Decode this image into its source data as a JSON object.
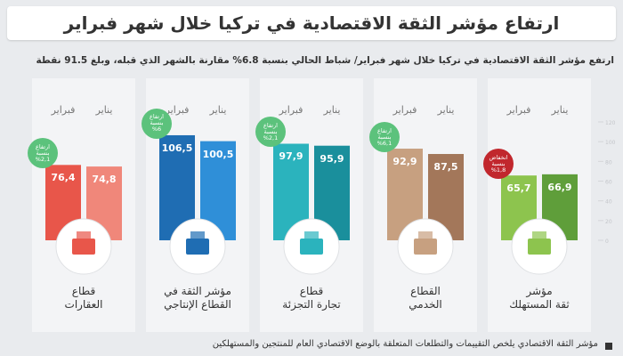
{
  "chart_data": {
    "type": "bar",
    "title": "ارتفاع مؤشر الثقة الاقتصادية في تركيا خلال شهر فبراير",
    "subtitle": "ارتفع مؤشر الثقة الاقتصادية في تركيا خلال شهر فبراير/ شباط الحالي بنسبة 6.8% مقارنة بالشهر الذي قبله، وبلغ 91.5 نقطة",
    "categories": [
      "قطاع\nالعقارات",
      "مؤشر الثقة في\nالقطاع الإنتاجي",
      "قطاع\nتجارة التجزئة",
      "القطاع\nالخدمي",
      "مؤشر\nثقة المستهلك"
    ],
    "series": [
      {
        "name": "فبراير",
        "colors": [
          "#e8564a",
          "#1f6db3",
          "#2bb3bd",
          "#c7a080",
          "#8dc44e"
        ],
        "values": [
          76.4,
          106.5,
          97.9,
          92.9,
          65.7
        ],
        "value_labels": [
          "76,4",
          "106,5",
          "97,9",
          "92,9",
          "65,7"
        ]
      },
      {
        "name": "يناير",
        "colors": [
          "#f0877a",
          "#2f8fd8",
          "#1a8f9c",
          "#a3775a",
          "#5f9e3a"
        ],
        "values": [
          74.8,
          100.5,
          95.9,
          87.5,
          66.9
        ],
        "value_labels": [
          "74,8",
          "100,5",
          "95,9",
          "87,5",
          "66,9"
        ]
      }
    ],
    "badges": [
      {
        "text": "ارتفاع\nبنسبة\n%2,1",
        "color": "#5cc27c"
      },
      {
        "text": "ارتفاع\nبنسبة\n%6",
        "color": "#5cc27c"
      },
      {
        "text": "ارتفاع\nبنسبة\n%2,1",
        "color": "#5cc27c"
      },
      {
        "text": "ارتفاع\nبنسبة\n%6,1",
        "color": "#5cc27c"
      },
      {
        "text": "انخفاض\nبنسبة\n%1,8",
        "color": "#c1272d"
      }
    ],
    "ylim": [
      0,
      120
    ],
    "yticks": [
      0,
      20,
      40,
      60,
      80,
      100,
      120
    ],
    "footnote": "مؤشر الثقة الاقتصادي يلخص التقييمات والتطلعات المتعلقة بالوضع الاقتصادي العام للمنتجين والمستهلكين"
  }
}
